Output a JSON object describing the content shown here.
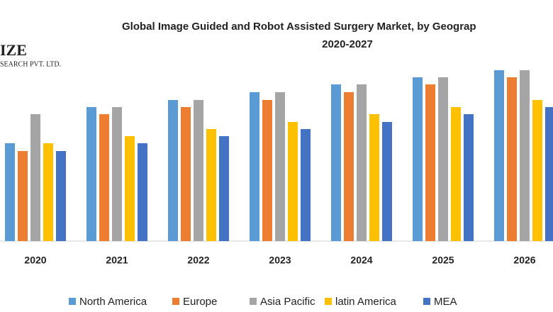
{
  "chart_data": {
    "type": "bar",
    "title": "Global Image Guided and Robot Assisted Surgery Market, by Geograp",
    "subtitle": "2020-2027",
    "logo": {
      "name": "IZE",
      "tagline": "SEARCH PVT. LTD."
    },
    "categories": [
      "2020",
      "2021",
      "2022",
      "2023",
      "2024",
      "2025",
      "2026"
    ],
    "series": [
      {
        "name": "North America",
        "color": "#5b9bd5",
        "values": [
          138,
          189,
          199,
          210,
          221,
          231,
          241
        ]
      },
      {
        "name": "Europe",
        "color": "#ed7d31",
        "values": [
          127,
          179,
          189,
          199,
          210,
          221,
          231
        ]
      },
      {
        "name": "Asia Pacific",
        "color": "#a5a5a5",
        "values": [
          179,
          189,
          199,
          210,
          221,
          231,
          241
        ]
      },
      {
        "name": "latin America",
        "color": "#ffc000",
        "values": [
          138,
          148,
          158,
          168,
          179,
          189,
          199
        ]
      },
      {
        "name": "MEA",
        "color": "#4472c4",
        "values": [
          127,
          138,
          148,
          158,
          168,
          179,
          189
        ]
      }
    ]
  }
}
